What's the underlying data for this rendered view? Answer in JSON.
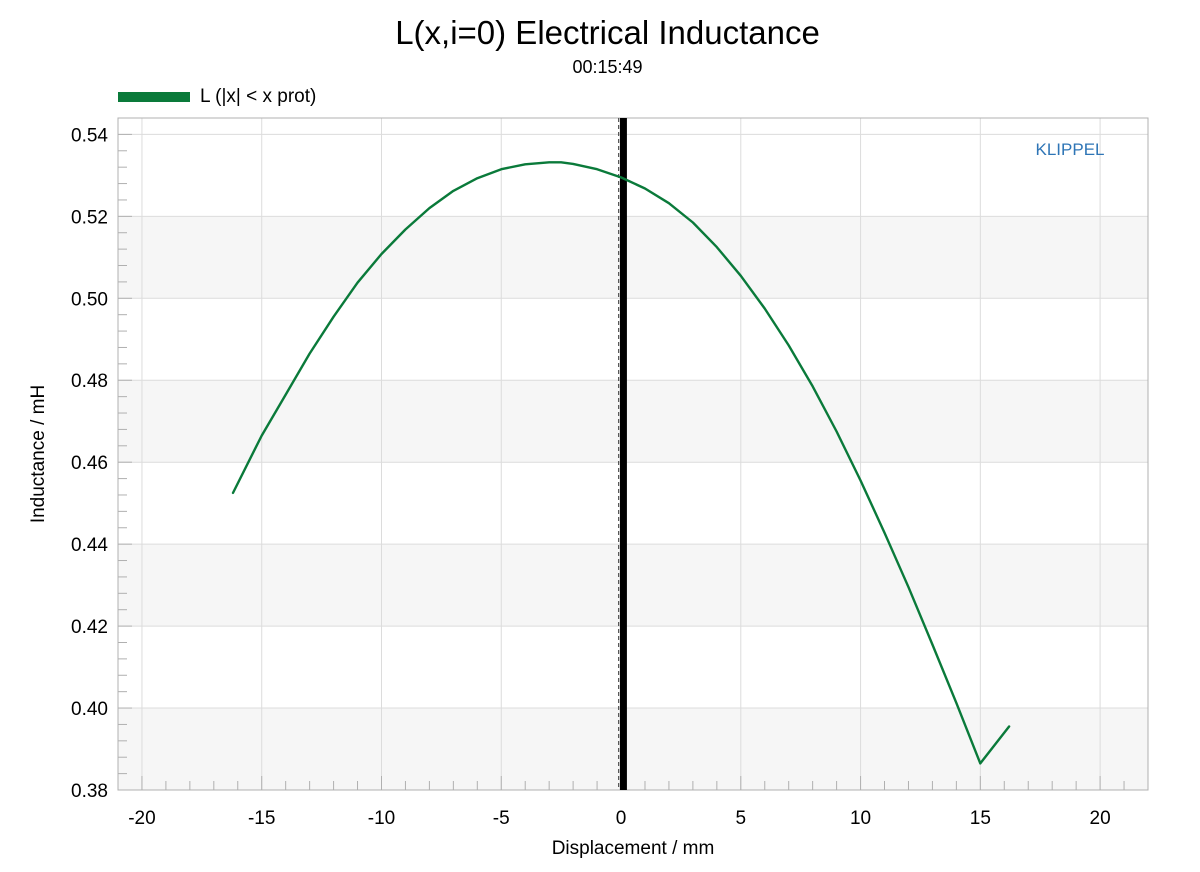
{
  "colors": {
    "series": "#0a7a3a",
    "band": "#f6f6f6",
    "grid": "#dcdcdc",
    "watermark": "#2e75b6",
    "marker": "#000000"
  },
  "chart_data": {
    "type": "line",
    "title": "L(x,i=0) Electrical Inductance",
    "subtitle": "00:15:49",
    "xlabel": "Displacement / mm",
    "ylabel": "Inductance / mH",
    "xlim": [
      -21,
      22
    ],
    "ylim": [
      0.38,
      0.544
    ],
    "xticks": [
      -20,
      -15,
      -10,
      -5,
      0,
      5,
      10,
      15,
      20
    ],
    "xtick_labels": [
      "-20",
      "-15",
      "-10",
      "-5",
      "0",
      "5",
      "10",
      "15",
      "20"
    ],
    "yticks": [
      0.38,
      0.4,
      0.42,
      0.44,
      0.46,
      0.48,
      0.5,
      0.52,
      0.54
    ],
    "ytick_labels": [
      "0.38",
      "0.40",
      "0.42",
      "0.44",
      "0.46",
      "0.48",
      "0.50",
      "0.52",
      "0.54"
    ],
    "grid": true,
    "legend_position": "top-left",
    "watermark": "KLIPPEL",
    "markers": {
      "solid_vertical_at_x": 0.1,
      "dashed_vertical_at_x": -0.1
    },
    "series": [
      {
        "name": "L (|x| < x prot)",
        "x": [
          -16.2,
          -15,
          -14,
          -13,
          -12,
          -11,
          -10,
          -9,
          -8,
          -7,
          -6,
          -5,
          -4,
          -3,
          -2.5,
          -2,
          -1,
          0,
          1,
          2,
          3,
          4,
          5,
          6,
          7,
          8,
          9,
          10,
          11,
          12,
          13,
          14,
          15,
          16.2
        ],
        "y": [
          0.4525,
          0.4665,
          0.4765,
          0.4865,
          0.4955,
          0.5038,
          0.5108,
          0.5168,
          0.522,
          0.5262,
          0.5293,
          0.5315,
          0.5327,
          0.5332,
          0.5332,
          0.5328,
          0.5315,
          0.5295,
          0.5268,
          0.5232,
          0.5185,
          0.5125,
          0.5055,
          0.4975,
          0.4885,
          0.4785,
          0.4675,
          0.4555,
          0.4428,
          0.4295,
          0.4155,
          0.4012,
          0.3865,
          0.3955
        ]
      }
    ]
  }
}
